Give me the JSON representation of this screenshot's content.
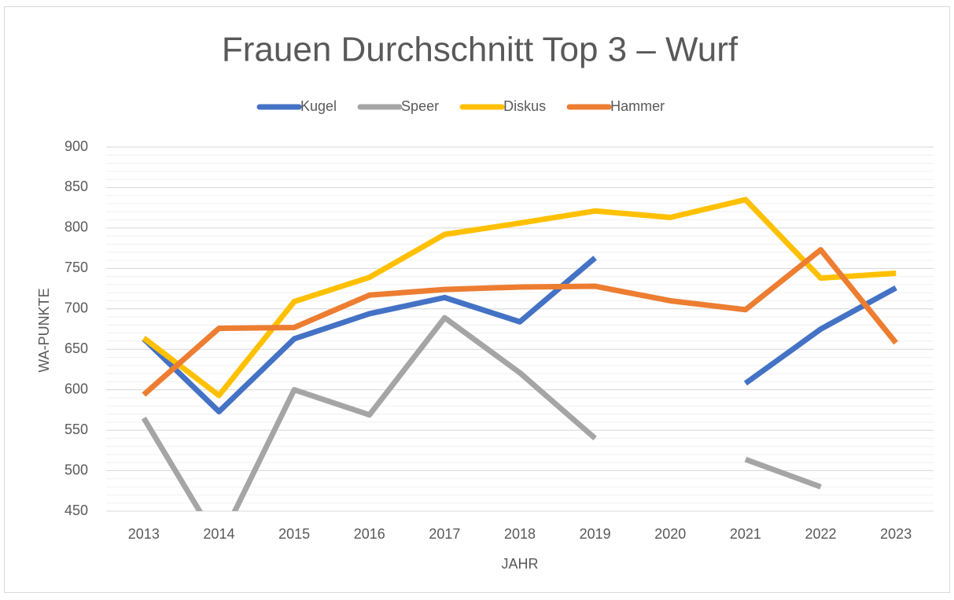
{
  "chart_data": {
    "type": "line",
    "title": "Frauen Durchschnitt Top 3 – Wurf",
    "x_label": "JAHR",
    "y_label": "WA-PUNKTE",
    "categories": [
      "2013",
      "2014",
      "2015",
      "2016",
      "2017",
      "2018",
      "2019",
      "2020",
      "2021",
      "2022",
      "2023"
    ],
    "series": [
      {
        "name": "Kugel",
        "color": "#4472c4",
        "values": [
          663,
          573,
          663,
          694,
          714,
          684,
          763,
          null,
          608,
          675,
          726
        ]
      },
      {
        "name": "Speer",
        "color": "#a5a5a5",
        "values": [
          565,
          410,
          600,
          569,
          689,
          621,
          540,
          null,
          514,
          480,
          null
        ]
      },
      {
        "name": "Diskus",
        "color": "#ffc000",
        "values": [
          664,
          593,
          709,
          739,
          792,
          806,
          821,
          813,
          835,
          738,
          744
        ]
      },
      {
        "name": "Hammer",
        "color": "#ed7d31",
        "values": [
          594,
          676,
          677,
          717,
          724,
          727,
          728,
          710,
          699,
          773,
          658
        ]
      }
    ],
    "ylim": [
      450,
      900
    ],
    "yticks": [
      450,
      500,
      550,
      600,
      650,
      700,
      750,
      800,
      850,
      900
    ],
    "grid": true,
    "minor_grid_step": 10,
    "legend": "top"
  }
}
